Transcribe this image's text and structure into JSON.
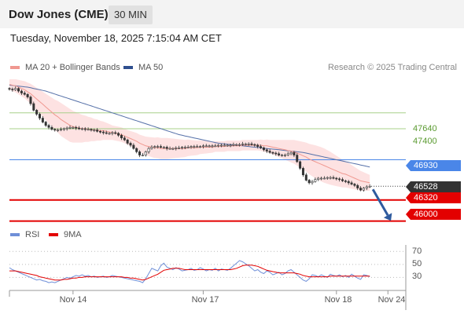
{
  "header": {
    "title": "Dow Jones (CME)",
    "timeframe": "30 MIN",
    "datetime": "Tuesday, November 18, 2025 7:15:04 AM CET",
    "credit": "Research © 2025 Trading Central"
  },
  "colors": {
    "ma20": "#f09890",
    "bollinger_fill": "#fde2e2",
    "ma50": "#5570a8",
    "resistance": "#a8d08a",
    "pivot": "#4a86e8",
    "support": "#e30000",
    "current": "#333333",
    "rsi": "#6f8fd8",
    "rsi_ma": "#e30000",
    "arrow": "#2e5a9e"
  },
  "chart_data": [
    {
      "type": "line",
      "name": "price-panel",
      "legend": [
        "MA 20 + Bollinger Bands",
        "MA 50"
      ],
      "legend_placement": "top-left",
      "yrange": [
        45960,
        48220
      ],
      "x_ticks": [
        "Nov 14",
        "Nov 17",
        "Nov 18",
        "Nov 24"
      ],
      "x_tick_index": [
        21,
        64,
        108,
        125
      ],
      "candles_count": 120,
      "close": [
        48000,
        47990,
        48010,
        47970,
        47940,
        47920,
        47880,
        47780,
        47680,
        47620,
        47560,
        47500,
        47450,
        47420,
        47390,
        47380,
        47380,
        47390,
        47400,
        47410,
        47420,
        47420,
        47410,
        47400,
        47400,
        47390,
        47390,
        47380,
        47380,
        47360,
        47350,
        47340,
        47330,
        47330,
        47340,
        47330,
        47300,
        47260,
        47230,
        47180,
        47150,
        47100,
        47050,
        47000,
        47000,
        47050,
        47100,
        47120,
        47130,
        47130,
        47120,
        47120,
        47100,
        47100,
        47100,
        47110,
        47110,
        47120,
        47120,
        47120,
        47130,
        47130,
        47130,
        47130,
        47140,
        47140,
        47140,
        47140,
        47140,
        47150,
        47150,
        47150,
        47150,
        47150,
        47160,
        47160,
        47160,
        47170,
        47170,
        47170,
        47160,
        47150,
        47130,
        47110,
        47080,
        47060,
        47040,
        47030,
        47020,
        47000,
        47000,
        47000,
        47020,
        47040,
        47000,
        46900,
        46800,
        46700,
        46620,
        46580,
        46600,
        46630,
        46650,
        46650,
        46650,
        46660,
        46660,
        46650,
        46640,
        46630,
        46610,
        46600,
        46580,
        46560,
        46540,
        46500,
        46470,
        46500,
        46520,
        46528
      ],
      "ma20": [
        48070,
        48060,
        48050,
        48030,
        48010,
        47990,
        47960,
        47930,
        47890,
        47850,
        47810,
        47770,
        47730,
        47690,
        47650,
        47610,
        47580,
        47540,
        47510,
        47480,
        47450,
        47430,
        47420,
        47410,
        47400,
        47400,
        47390,
        47390,
        47380,
        47380,
        47370,
        47370,
        47360,
        47350,
        47340,
        47330,
        47320,
        47310,
        47290,
        47270,
        47250,
        47230,
        47210,
        47180,
        47160,
        47140,
        47130,
        47120,
        47110,
        47110,
        47100,
        47100,
        47100,
        47100,
        47100,
        47100,
        47100,
        47100,
        47100,
        47110,
        47110,
        47110,
        47110,
        47120,
        47120,
        47120,
        47120,
        47120,
        47130,
        47130,
        47130,
        47130,
        47140,
        47140,
        47140,
        47140,
        47140,
        47150,
        47150,
        47150,
        47150,
        47150,
        47150,
        47150,
        47140,
        47140,
        47130,
        47120,
        47110,
        47100,
        47090,
        47080,
        47070,
        47060,
        47050,
        47030,
        47010,
        46990,
        46970,
        46940,
        46920,
        46900,
        46880,
        46860,
        46840,
        46820,
        46800,
        46780,
        46760,
        46740,
        46720,
        46710,
        46690,
        46670,
        46650,
        46630,
        46610,
        46600,
        46590,
        46580
      ],
      "ma50": [
        48060,
        48055,
        48050,
        48045,
        48040,
        48035,
        48030,
        48020,
        48010,
        48000,
        47990,
        47980,
        47970,
        47955,
        47940,
        47925,
        47910,
        47895,
        47880,
        47865,
        47850,
        47835,
        47820,
        47805,
        47790,
        47775,
        47760,
        47745,
        47730,
        47715,
        47700,
        47685,
        47670,
        47655,
        47640,
        47625,
        47610,
        47595,
        47580,
        47565,
        47550,
        47535,
        47520,
        47505,
        47490,
        47475,
        47460,
        47445,
        47430,
        47415,
        47400,
        47385,
        47370,
        47355,
        47340,
        47325,
        47310,
        47300,
        47290,
        47280,
        47270,
        47260,
        47250,
        47240,
        47230,
        47220,
        47210,
        47200,
        47190,
        47180,
        47175,
        47170,
        47165,
        47160,
        47155,
        47150,
        47145,
        47140,
        47135,
        47130,
        47125,
        47120,
        47115,
        47110,
        47105,
        47100,
        47095,
        47090,
        47085,
        47080,
        47075,
        47070,
        47065,
        47060,
        47055,
        47050,
        47045,
        47040,
        47030,
        47020,
        47010,
        47000,
        46990,
        46980,
        46970,
        46960,
        46950,
        46940,
        46930,
        46920,
        46910,
        46900,
        46890,
        46880,
        46870,
        46860,
        46850,
        46840,
        46830,
        46820
      ],
      "bollinger_width": [
        80,
        90,
        100,
        110,
        120,
        130,
        140,
        150,
        160,
        170,
        180,
        190,
        200,
        210,
        220,
        230,
        240,
        250,
        250,
        250,
        250,
        240,
        230,
        220,
        210,
        200,
        190,
        180,
        170,
        160,
        150,
        140,
        130,
        120,
        110,
        110,
        110,
        110,
        110,
        110,
        115,
        120,
        125,
        130,
        135,
        140,
        145,
        150,
        155,
        160,
        160,
        160,
        160,
        155,
        150,
        145,
        140,
        135,
        130,
        125,
        120,
        115,
        110,
        105,
        100,
        95,
        90,
        85,
        80,
        80,
        80,
        80,
        80,
        80,
        80,
        80,
        80,
        80,
        80,
        80,
        80,
        80,
        80,
        85,
        90,
        95,
        100,
        110,
        120,
        130,
        140,
        150,
        160,
        170,
        180,
        190,
        200,
        210,
        220,
        230,
        240,
        250,
        255,
        260,
        260,
        255,
        250,
        240,
        230,
        220,
        210,
        200,
        190,
        180,
        170,
        160,
        150,
        140,
        130,
        120
      ],
      "levels": [
        {
          "value": 47640,
          "label": "47640",
          "kind": "resistance"
        },
        {
          "value": 47400,
          "label": "47400",
          "kind": "resistance"
        },
        {
          "value": 46930,
          "label": "46930",
          "kind": "pivot"
        },
        {
          "value": 46528,
          "label": "46528",
          "kind": "current"
        },
        {
          "value": 46320,
          "label": "46320",
          "kind": "support"
        },
        {
          "value": 46000,
          "label": "46000",
          "kind": "support"
        }
      ],
      "arrow": {
        "from": {
          "index": 119,
          "value": 46528
        },
        "to": {
          "index": 126,
          "value": 46040
        }
      }
    },
    {
      "type": "line",
      "name": "rsi-panel",
      "legend": [
        "RSI",
        "9MA"
      ],
      "legend_placement": "top-left",
      "yrange": [
        10,
        80
      ],
      "y_ticks": [
        70,
        50,
        30
      ],
      "rsi": [
        45,
        42,
        40,
        38,
        36,
        34,
        32,
        30,
        28,
        26,
        27,
        25,
        24,
        22,
        23,
        22,
        24,
        26,
        28,
        30,
        29,
        31,
        33,
        32,
        34,
        32,
        33,
        31,
        32,
        30,
        31,
        32,
        30,
        31,
        33,
        32,
        31,
        30,
        29,
        28,
        27,
        26,
        25,
        24,
        22,
        28,
        36,
        44,
        42,
        40,
        48,
        52,
        46,
        44,
        42,
        45,
        43,
        40,
        41,
        42,
        44,
        41,
        42,
        45,
        43,
        40,
        42,
        41,
        44,
        40,
        43,
        42,
        41,
        44,
        48,
        52,
        56,
        54,
        51,
        48,
        44,
        40,
        42,
        38,
        36,
        40,
        38,
        34,
        36,
        38,
        34,
        36,
        40,
        42,
        38,
        34,
        30,
        26,
        24,
        28,
        34,
        33,
        31,
        34,
        32,
        30,
        35,
        33,
        32,
        34,
        31,
        33,
        30,
        35,
        32,
        29,
        27,
        34,
        33,
        31
      ],
      "ma": [
        40,
        40,
        40,
        39,
        38,
        37,
        36,
        35,
        34,
        33,
        31,
        30,
        29,
        28,
        27,
        26,
        26,
        26,
        27,
        27,
        28,
        29,
        29,
        30,
        30,
        31,
        31,
        31,
        31,
        31,
        31,
        31,
        31,
        31,
        31,
        31,
        31,
        31,
        30,
        30,
        29,
        29,
        28,
        27,
        26,
        27,
        29,
        31,
        33,
        35,
        38,
        41,
        42,
        43,
        44,
        44,
        44,
        43,
        42,
        42,
        42,
        42,
        42,
        42,
        42,
        42,
        42,
        42,
        42,
        42,
        42,
        42,
        42,
        42,
        43,
        44,
        46,
        48,
        49,
        49,
        49,
        48,
        47,
        45,
        43,
        41,
        40,
        39,
        38,
        37,
        37,
        37,
        37,
        37,
        37,
        36,
        35,
        33,
        32,
        31,
        31,
        31,
        31,
        31,
        31,
        31,
        32,
        32,
        32,
        32,
        32,
        32,
        32,
        32,
        32,
        32,
        32,
        32,
        32,
        32
      ]
    }
  ]
}
